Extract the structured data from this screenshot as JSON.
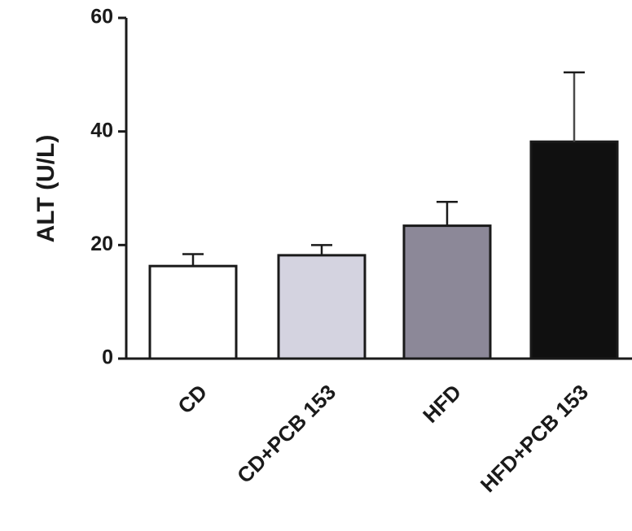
{
  "chart_data": {
    "type": "bar",
    "title": "",
    "xlabel": "",
    "ylabel": "ALT (U/L)",
    "ylim": [
      0,
      60
    ],
    "yticks": [
      0,
      20,
      40,
      60
    ],
    "ytick_labels": [
      "0",
      "20",
      "40",
      "60"
    ],
    "grid": false,
    "legend": "none",
    "categories": [
      "CD",
      "CD+PCB 153",
      "HFD",
      "HFD+PCB 153"
    ],
    "values": [
      16.3,
      18.2,
      23.4,
      38.2
    ],
    "errors": [
      2.1,
      1.8,
      4.2,
      12.2
    ],
    "colors": [
      "#ffffff",
      "#d4d3e0",
      "#8c8898",
      "#101010"
    ],
    "edge_color": "#1a1a1a",
    "error_bar_style": "upper-only"
  }
}
